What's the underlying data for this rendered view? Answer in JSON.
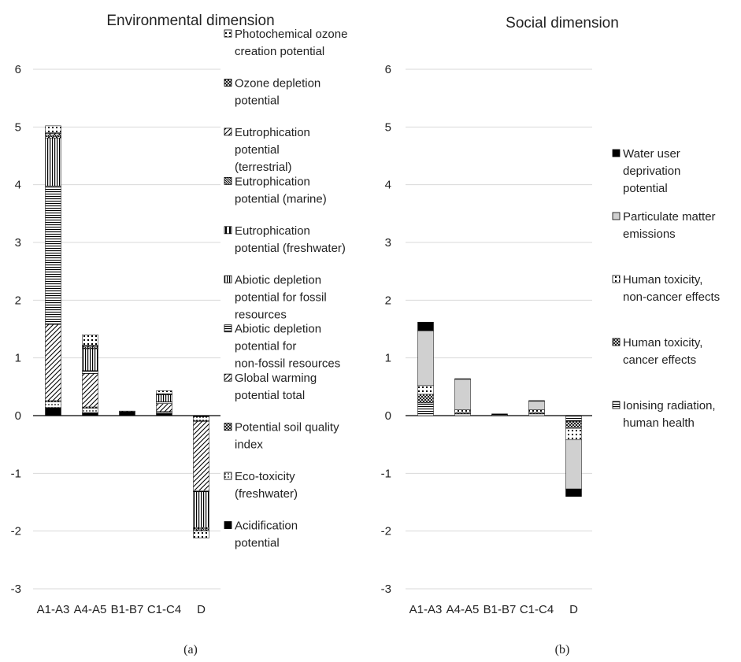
{
  "chart_data": [
    {
      "type": "bar",
      "stacked": true,
      "title": "Environmental dimension",
      "caption": "(a)",
      "categories": [
        "A1-A3",
        "A4-A5",
        "B1-B7",
        "C1-C4",
        "D"
      ],
      "ylim": [
        -3,
        6
      ],
      "yticks": [
        "-3",
        "-2",
        "-1",
        "0",
        "1",
        "2",
        "3",
        "4",
        "5",
        "6"
      ],
      "grid": true,
      "legend_position": "right",
      "series": [
        {
          "name": "Acidification potential",
          "pattern": "solid",
          "values": [
            0.14,
            0.05,
            0.07,
            0.04,
            -0.02
          ]
        },
        {
          "name": "Eco-toxicity (freshwater)",
          "pattern": "dots",
          "values": [
            0.1,
            0.08,
            0.0,
            0.02,
            -0.07
          ]
        },
        {
          "name": "Potential soil quality index",
          "pattern": "crosshatch",
          "values": [
            0.02,
            0.02,
            0.0,
            0.01,
            -0.01
          ]
        },
        {
          "name": "Global warming potential total",
          "pattern": "diag",
          "values": [
            1.32,
            0.58,
            0.01,
            0.14,
            -1.2
          ]
        },
        {
          "name": "Abiotic depletion potential for non-fossil resources",
          "pattern": "hlines",
          "values": [
            2.4,
            0.05,
            0.0,
            0.03,
            -0.02
          ]
        },
        {
          "name": "Abiotic depletion potential for fossil resources",
          "pattern": "vlines",
          "values": [
            0.83,
            0.38,
            0.0,
            0.12,
            -0.62
          ]
        },
        {
          "name": "Eutrophication potential (freshwater)",
          "pattern": "vwide",
          "values": [
            0.02,
            0.01,
            0.0,
            0.0,
            -0.02
          ]
        },
        {
          "name": "Eutrophication potential (marine)",
          "pattern": "diagdense",
          "values": [
            0.03,
            0.02,
            0.0,
            0.01,
            -0.02
          ]
        },
        {
          "name": "Eutrophication potential (terrestrial)",
          "pattern": "diag",
          "values": [
            0.03,
            0.02,
            0.0,
            0.01,
            -0.02
          ]
        },
        {
          "name": "Ozone depletion potential",
          "pattern": "crosshatch",
          "values": [
            0.01,
            0.01,
            0.0,
            0.0,
            0.0
          ]
        },
        {
          "name": "Photochemical ozone creation potential",
          "pattern": "dotsbig",
          "values": [
            0.12,
            0.18,
            0.0,
            0.05,
            -0.12
          ]
        }
      ]
    },
    {
      "type": "bar",
      "stacked": true,
      "title": "Social dimension",
      "caption": "(b)",
      "categories": [
        "A1-A3",
        "A4-A5",
        "B1-B7",
        "C1-C4",
        "D"
      ],
      "ylim": [
        -3,
        6
      ],
      "yticks": [
        "-3",
        "-2",
        "-1",
        "0",
        "1",
        "2",
        "3",
        "4",
        "5",
        "6"
      ],
      "grid": true,
      "legend_position": "right",
      "series": [
        {
          "name": "Ionising radiation, human health",
          "pattern": "hlines",
          "values": [
            0.22,
            0.03,
            0.01,
            0.03,
            -0.1
          ]
        },
        {
          "name": "Human toxicity, cancer effects",
          "pattern": "crosshatch",
          "values": [
            0.15,
            0.02,
            0.0,
            0.02,
            -0.12
          ]
        },
        {
          "name": "Human toxicity, non-cancer effects",
          "pattern": "dotsbig",
          "values": [
            0.15,
            0.05,
            0.0,
            0.05,
            -0.2
          ]
        },
        {
          "name": "Particulate matter emissions",
          "pattern": "gray",
          "values": [
            0.95,
            0.53,
            0.0,
            0.15,
            -0.85
          ]
        },
        {
          "name": "Water user deprivation potential",
          "pattern": "solid",
          "values": [
            0.15,
            0.01,
            0.02,
            0.01,
            -0.13
          ]
        }
      ]
    }
  ]
}
